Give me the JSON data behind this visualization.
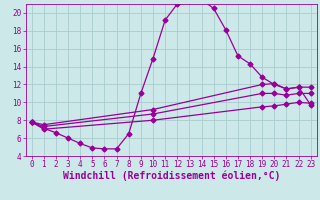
{
  "xlabel": "Windchill (Refroidissement éolien,°C)",
  "background_color": "#cce8e8",
  "grid_color": "#aacccc",
  "line_color": "#990099",
  "xlim": [
    -0.5,
    23.5
  ],
  "ylim": [
    4,
    21
  ],
  "xticks": [
    0,
    1,
    2,
    3,
    4,
    5,
    6,
    7,
    8,
    9,
    10,
    11,
    12,
    13,
    14,
    15,
    16,
    17,
    18,
    19,
    20,
    21,
    22,
    23
  ],
  "yticks": [
    4,
    6,
    8,
    10,
    12,
    14,
    16,
    18,
    20
  ],
  "series": {
    "top": {
      "x": [
        0,
        1,
        2,
        3,
        4,
        5,
        6,
        7,
        8,
        9,
        10,
        11,
        12,
        13,
        14,
        15,
        16,
        17,
        18,
        19,
        20,
        21,
        22,
        23
      ],
      "y": [
        7.8,
        7.1,
        6.6,
        6.0,
        5.4,
        4.9,
        4.8,
        4.8,
        6.5,
        11.0,
        14.9,
        19.2,
        21.0,
        21.3,
        21.5,
        20.5,
        18.1,
        15.2,
        14.3,
        12.8,
        12.0,
        11.5,
        11.7,
        9.7
      ]
    },
    "mid1": {
      "x": [
        0,
        1,
        10,
        19,
        20,
        21,
        22,
        23
      ],
      "y": [
        7.8,
        7.5,
        9.2,
        12.0,
        12.1,
        11.5,
        11.7,
        11.7
      ]
    },
    "mid2": {
      "x": [
        0,
        1,
        10,
        19,
        20,
        21,
        22,
        23
      ],
      "y": [
        7.8,
        7.3,
        8.7,
        11.0,
        11.0,
        10.8,
        11.0,
        11.0
      ]
    },
    "bottom": {
      "x": [
        0,
        1,
        10,
        19,
        20,
        21,
        22,
        23
      ],
      "y": [
        7.8,
        7.0,
        8.0,
        9.5,
        9.6,
        9.8,
        10.0,
        9.9
      ]
    }
  },
  "marker": "D",
  "markersize": 2.5,
  "linewidth": 0.9,
  "tick_fontsize": 5.5,
  "xlabel_fontsize": 7.0
}
